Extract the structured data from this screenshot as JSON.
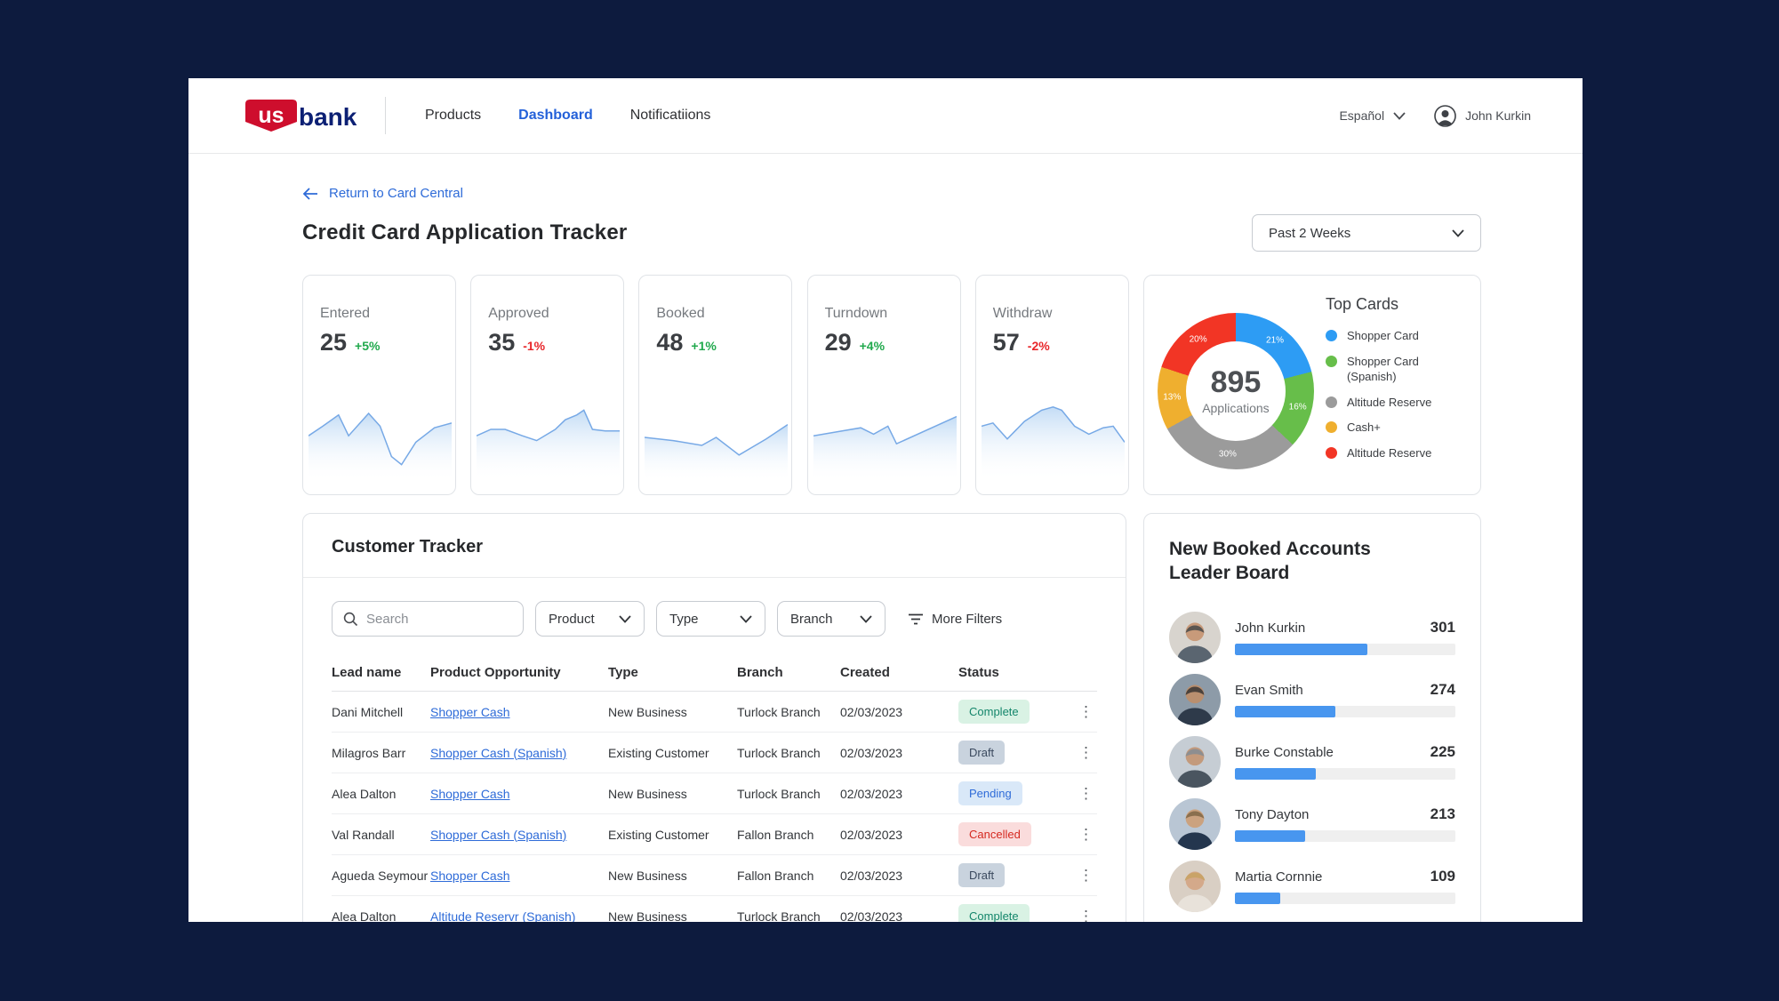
{
  "nav": {
    "brand": {
      "us": "us",
      "bank": "bank."
    },
    "links": [
      {
        "label": "Products"
      },
      {
        "label": "Dashboard"
      },
      {
        "label": "Notificatiions"
      }
    ],
    "language": "Español",
    "user": "John Kurkin"
  },
  "page": {
    "back_link": "Return to Card Central",
    "title": "Credit Card Application Tracker",
    "period_filter": "Past 2 Weeks"
  },
  "stats": [
    {
      "label": "Entered",
      "value": "25",
      "delta": "+5%",
      "trend": "up",
      "spark": [
        [
          0,
          29
        ],
        [
          10,
          23
        ],
        [
          21,
          16
        ],
        [
          28,
          29
        ],
        [
          42,
          15
        ],
        [
          50,
          23
        ],
        [
          58,
          42
        ],
        [
          65,
          47
        ],
        [
          75,
          33
        ],
        [
          88,
          24
        ],
        [
          100,
          21
        ]
      ]
    },
    {
      "label": "Approved",
      "value": "35",
      "delta": "-1%",
      "trend": "down",
      "spark": [
        [
          0,
          29
        ],
        [
          10,
          25
        ],
        [
          20,
          25
        ],
        [
          32,
          29
        ],
        [
          42,
          32
        ],
        [
          55,
          25
        ],
        [
          62,
          19
        ],
        [
          70,
          16
        ],
        [
          75,
          13
        ],
        [
          81,
          25
        ],
        [
          90,
          26
        ],
        [
          100,
          26
        ]
      ]
    },
    {
      "label": "Booked",
      "value": "48",
      "delta": "+1%",
      "trend": "up",
      "spark": [
        [
          0,
          30
        ],
        [
          20,
          32
        ],
        [
          40,
          35
        ],
        [
          50,
          30
        ],
        [
          66,
          41
        ],
        [
          85,
          31
        ],
        [
          100,
          22
        ]
      ]
    },
    {
      "label": "Turndown",
      "value": "29",
      "delta": "+4%",
      "trend": "up",
      "spark": [
        [
          0,
          29
        ],
        [
          20,
          26
        ],
        [
          33,
          24
        ],
        [
          42,
          28
        ],
        [
          52,
          23
        ],
        [
          58,
          34
        ],
        [
          100,
          17
        ]
      ]
    },
    {
      "label": "Withdraw",
      "value": "57",
      "delta": "-2%",
      "trend": "down",
      "spark": [
        [
          0,
          23
        ],
        [
          8,
          21
        ],
        [
          18,
          31
        ],
        [
          30,
          20
        ],
        [
          42,
          13
        ],
        [
          50,
          11
        ],
        [
          56,
          13
        ],
        [
          65,
          23
        ],
        [
          75,
          28
        ],
        [
          85,
          24
        ],
        [
          92,
          23
        ],
        [
          100,
          33
        ]
      ]
    }
  ],
  "chart_data": {
    "type": "pie",
    "title": "Top Cards",
    "center_value": "895",
    "center_label": "Applications",
    "slices": [
      {
        "label": "Shopper Card",
        "pct": 21,
        "pct_label": "21%",
        "color": "#2D9CF4"
      },
      {
        "label": "Shopper Card (Spanish)",
        "pct": 16,
        "pct_label": "16%",
        "color": "#67BE4A"
      },
      {
        "label": "Altitude Reserve",
        "pct": 30,
        "pct_label": "30%",
        "color": "#9B9B9B"
      },
      {
        "label": "Cash+",
        "pct": 13,
        "pct_label": "13%",
        "color": "#EFAF2F"
      },
      {
        "label": "Altitude Reserve",
        "pct": 20,
        "pct_label": "20%",
        "color": "#F23525"
      }
    ]
  },
  "tracker": {
    "title": "Customer Tracker",
    "search_placeholder": "Search",
    "filters": [
      "Product",
      "Type",
      "Branch"
    ],
    "more_filters": "More Filters",
    "columns": [
      "Lead name",
      "Product Opportunity",
      "Type",
      "Branch",
      "Created",
      "Status"
    ],
    "rows": [
      {
        "lead": "Dani Mitchell",
        "product": "Shopper Cash",
        "type": "New Business",
        "branch": "Turlock Branch",
        "created": "02/03/2023",
        "status": "Complete"
      },
      {
        "lead": "Milagros Barr",
        "product": "Shopper Cash (Spanish)",
        "type": "Existing Customer",
        "branch": "Turlock Branch",
        "created": "02/03/2023",
        "status": "Draft"
      },
      {
        "lead": "Alea Dalton",
        "product": "Shopper Cash",
        "type": "New Business",
        "branch": "Turlock Branch",
        "created": "02/03/2023",
        "status": "Pending"
      },
      {
        "lead": "Val Randall",
        "product": "Shopper Cash (Spanish)",
        "type": "Existing Customer",
        "branch": "Fallon Branch",
        "created": "02/03/2023",
        "status": "Cancelled"
      },
      {
        "lead": "Agueda Seymour",
        "product": "Shopper Cash",
        "type": "New Business",
        "branch": "Fallon Branch",
        "created": "02/03/2023",
        "status": "Draft"
      },
      {
        "lead": "Alea Dalton",
        "product": "Altitude Reservr (Spanish)",
        "type": "New Business",
        "branch": "Turlock Branch",
        "created": "02/03/2023",
        "status": "Complete"
      }
    ]
  },
  "leaderboard": {
    "title_line1": "New Booked Accounts",
    "title_line2": "Leader Board",
    "entries": [
      {
        "name": "John Kurkin",
        "value": "301",
        "pct": 60
      },
      {
        "name": "Evan Smith",
        "value": "274",
        "pct": 45.5
      },
      {
        "name": "Burke Constable",
        "value": "225",
        "pct": 36.5
      },
      {
        "name": "Tony Dayton",
        "value": "213",
        "pct": 32
      },
      {
        "name": "Martia Cornnie",
        "value": "109",
        "pct": 20.7
      }
    ]
  }
}
